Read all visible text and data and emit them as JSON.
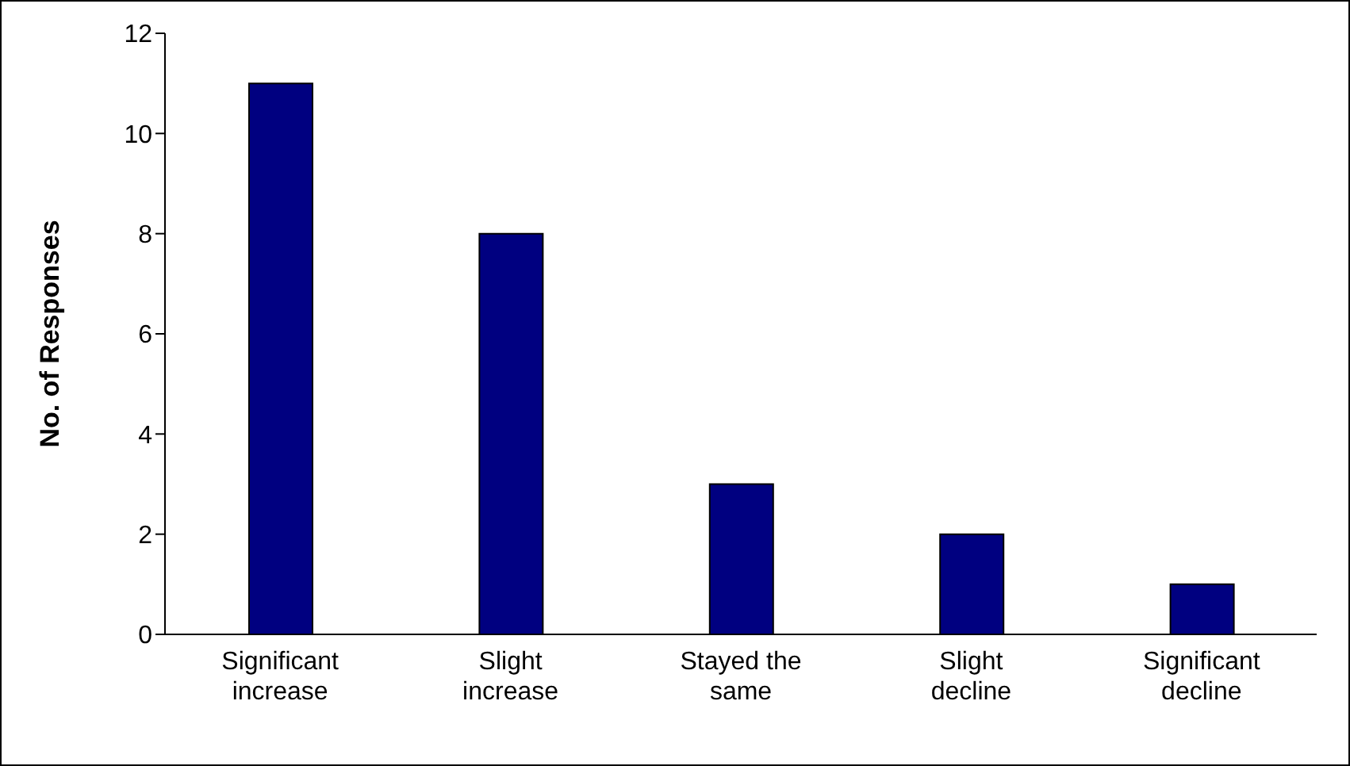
{
  "chart_data": {
    "type": "bar",
    "ylabel": "No. of Responses",
    "categories": [
      "Significant increase",
      "Slight increase",
      "Stayed the same",
      "Slight decline",
      "Significant decline"
    ],
    "values": [
      11,
      8,
      3,
      2,
      1
    ],
    "color": "#000080",
    "ylim": [
      0,
      12
    ],
    "yticks": [
      0,
      2,
      4,
      6,
      8,
      10,
      12
    ],
    "grid": false
  }
}
